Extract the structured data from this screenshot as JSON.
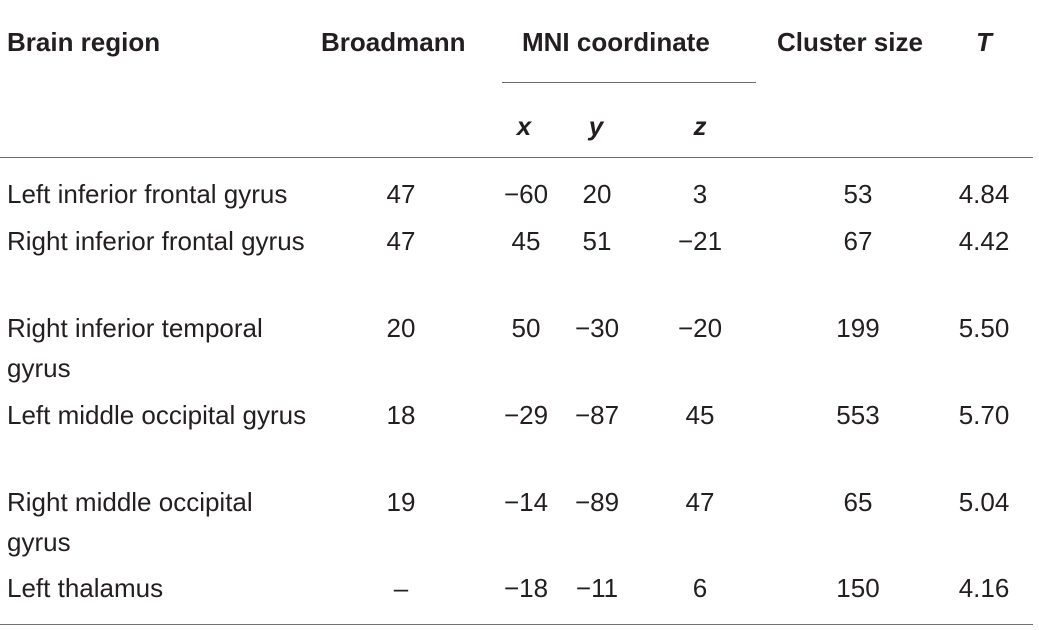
{
  "table": {
    "headers": {
      "region": "Brain region",
      "broadmann": "Broadmann",
      "mni": "MNI coordinate",
      "cluster": "Cluster size",
      "t": "T",
      "x": "x",
      "y": "y",
      "z": "z"
    },
    "rows": [
      {
        "region": "Left inferior frontal gyrus",
        "broadmann": "47",
        "x": "−60",
        "y": "20",
        "z": "3",
        "cluster": "53",
        "t": "4.84"
      },
      {
        "region": "Right inferior frontal gyrus",
        "broadmann": "47",
        "x": "45",
        "y": "51",
        "z": "−21",
        "cluster": "67",
        "t": "4.42"
      },
      {
        "region": "Right inferior temporal gyrus",
        "broadmann": "20",
        "x": "50",
        "y": "−30",
        "z": "−20",
        "cluster": "199",
        "t": "5.50"
      },
      {
        "region": "Left middle occipital gyrus",
        "broadmann": "18",
        "x": "−29",
        "y": "−87",
        "z": "45",
        "cluster": "553",
        "t": "5.70"
      },
      {
        "region": "Right middle occipital gyrus",
        "broadmann": "19",
        "x": "−14",
        "y": "−89",
        "z": "47",
        "cluster": "65",
        "t": "5.04"
      },
      {
        "region": "Left thalamus",
        "broadmann": "–",
        "x": "−18",
        "y": "−11",
        "z": "6",
        "cluster": "150",
        "t": "4.16"
      }
    ]
  }
}
